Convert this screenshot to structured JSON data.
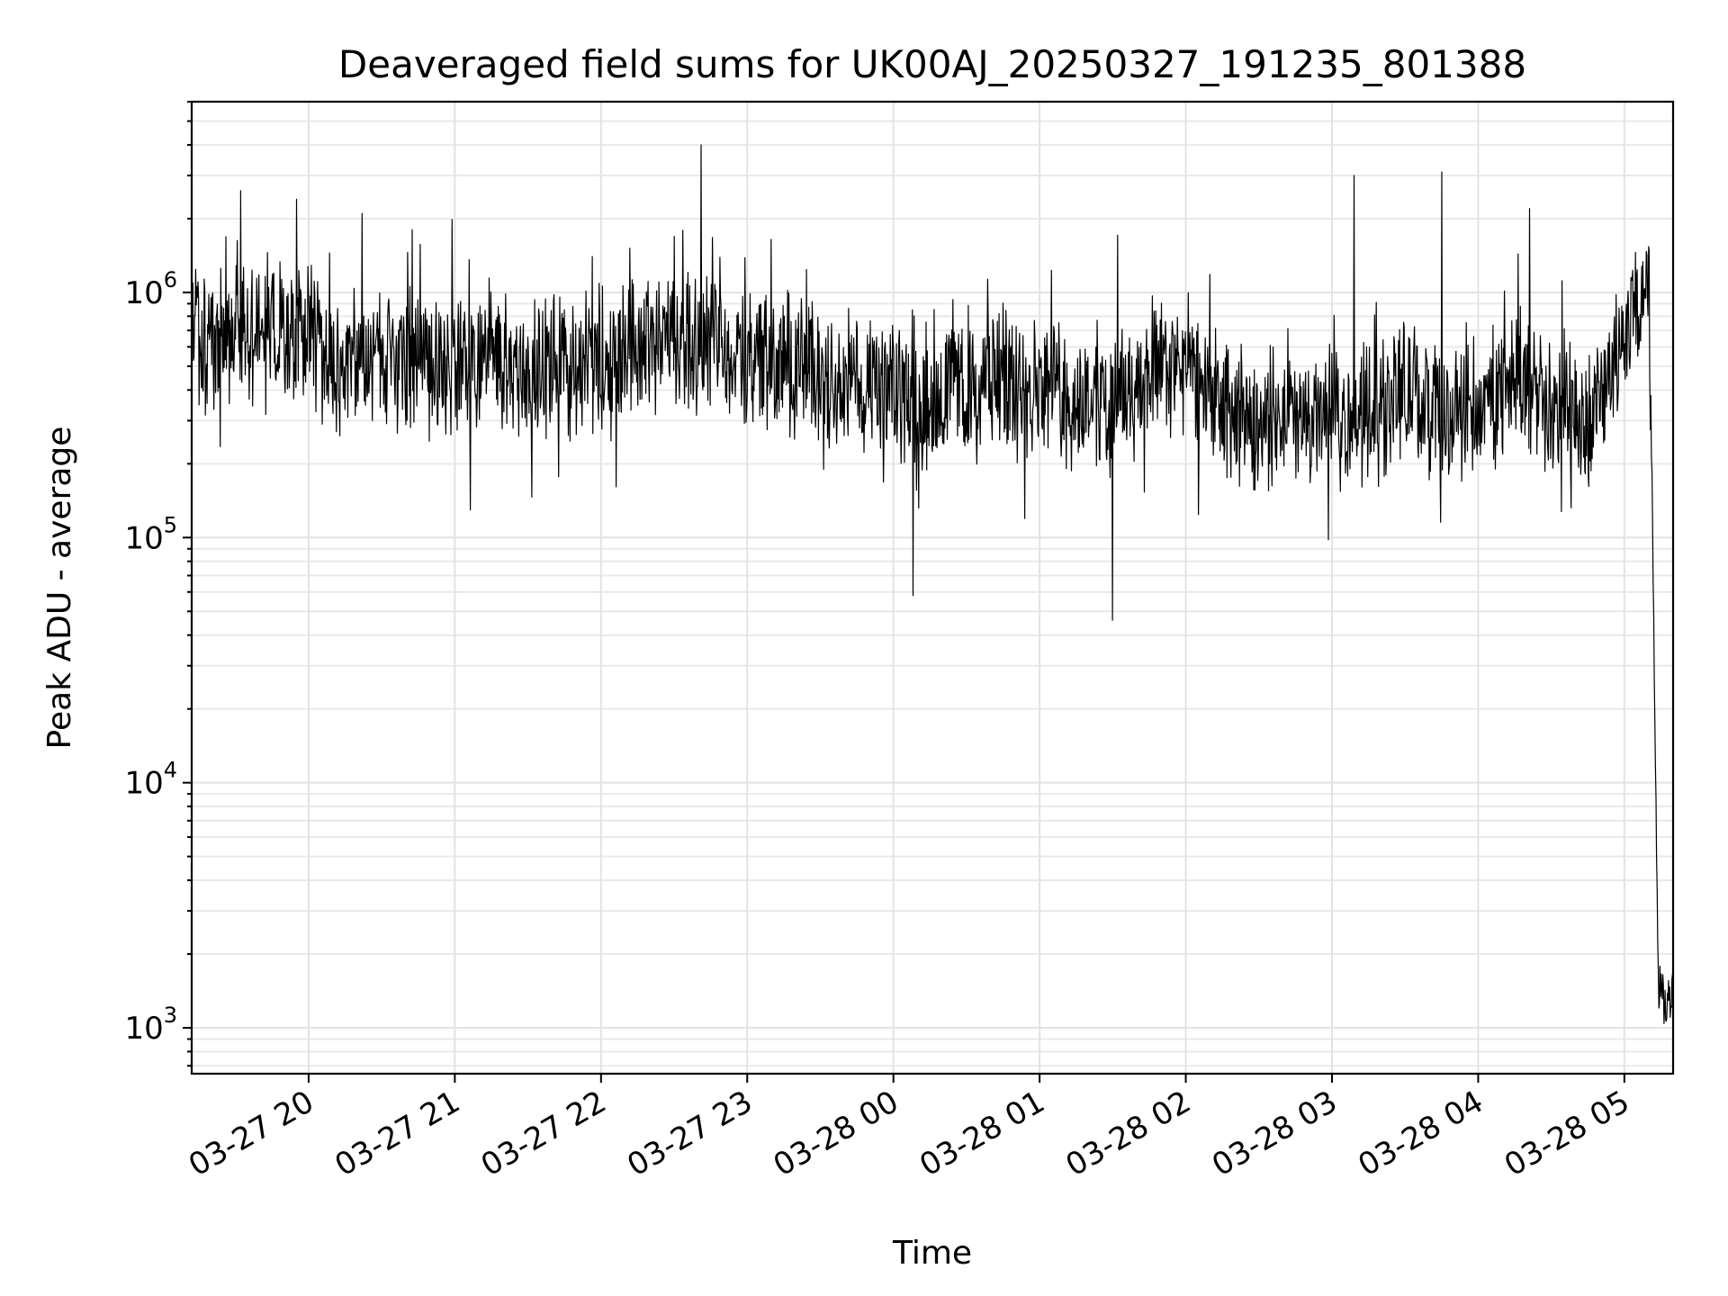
{
  "chart_data": {
    "type": "line",
    "title": "Deaveraged field sums for UK00AJ_20250327_191235_801388",
    "xlabel": "Time",
    "ylabel": "Peak ADU - average",
    "yscale": "log",
    "ylim": [
      650,
      6000000
    ],
    "xlim": [
      "2025-03-27 19:12",
      "2025-03-28 05:20"
    ],
    "grid": true,
    "line_color": "#000000",
    "x_ticks": [
      {
        "value": "2025-03-27 20:00",
        "label": "03-27 20"
      },
      {
        "value": "2025-03-27 21:00",
        "label": "03-27 21"
      },
      {
        "value": "2025-03-27 22:00",
        "label": "03-27 22"
      },
      {
        "value": "2025-03-27 23:00",
        "label": "03-27 23"
      },
      {
        "value": "2025-03-28 00:00",
        "label": "03-28 00"
      },
      {
        "value": "2025-03-28 01:00",
        "label": "03-28 01"
      },
      {
        "value": "2025-03-28 02:00",
        "label": "03-28 02"
      },
      {
        "value": "2025-03-28 03:00",
        "label": "03-28 03"
      },
      {
        "value": "2025-03-28 04:00",
        "label": "03-28 04"
      },
      {
        "value": "2025-03-28 05:00",
        "label": "03-28 05"
      }
    ],
    "y_ticks": [
      {
        "value": 1000,
        "base": "10",
        "exp": "3"
      },
      {
        "value": 10000,
        "base": "10",
        "exp": "4"
      },
      {
        "value": 100000,
        "base": "10",
        "exp": "5"
      },
      {
        "value": 1000000,
        "base": "10",
        "exp": "6"
      }
    ],
    "series": [
      {
        "x": [
          "2025-03-27 19:12",
          "2025-03-27 19:20",
          "2025-03-27 19:28",
          "2025-03-27 19:36",
          "2025-03-27 19:44",
          "2025-03-27 19:52",
          "2025-03-27 20:00",
          "2025-03-27 20:15",
          "2025-03-27 20:30",
          "2025-03-27 20:45",
          "2025-03-27 21:00",
          "2025-03-27 21:15",
          "2025-03-27 21:30",
          "2025-03-27 21:45",
          "2025-03-27 22:00",
          "2025-03-27 22:15",
          "2025-03-27 22:30",
          "2025-03-27 22:45",
          "2025-03-27 23:00",
          "2025-03-27 23:15",
          "2025-03-27 23:30",
          "2025-03-27 23:45",
          "2025-03-28 00:00",
          "2025-03-28 00:15",
          "2025-03-28 00:30",
          "2025-03-28 00:45",
          "2025-03-28 01:00",
          "2025-03-28 01:15",
          "2025-03-28 01:30",
          "2025-03-28 01:45",
          "2025-03-28 02:00",
          "2025-03-28 02:15",
          "2025-03-28 02:30",
          "2025-03-28 02:45",
          "2025-03-28 03:00",
          "2025-03-28 03:15",
          "2025-03-28 03:30",
          "2025-03-28 03:45",
          "2025-03-28 04:00",
          "2025-03-28 04:15",
          "2025-03-28 04:30",
          "2025-03-28 04:45",
          "2025-03-28 05:00",
          "2025-03-28 05:05",
          "2025-03-28 05:10",
          "2025-03-28 05:12",
          "2025-03-28 05:14",
          "2025-03-28 05:17",
          "2025-03-28 05:20"
        ],
        "y": [
          800000,
          550000,
          650000,
          700000,
          720000,
          700000,
          650000,
          500000,
          550000,
          480000,
          500000,
          520000,
          480000,
          500000,
          520000,
          650000,
          700000,
          620000,
          520000,
          520000,
          480000,
          420000,
          380000,
          380000,
          420000,
          450000,
          430000,
          370000,
          360000,
          450000,
          500000,
          330000,
          300000,
          300000,
          300000,
          320000,
          400000,
          300000,
          330000,
          450000,
          320000,
          300000,
          600000,
          900000,
          1300000,
          50000,
          1500,
          1200,
          1500
        ]
      }
    ],
    "spikes": [
      {
        "x": "2025-03-27 19:32",
        "y": 2600000
      },
      {
        "x": "2025-03-27 19:55",
        "y": 2400000
      },
      {
        "x": "2025-03-27 20:22",
        "y": 2100000
      },
      {
        "x": "2025-03-27 22:41",
        "y": 4000000
      },
      {
        "x": "2025-03-28 03:09",
        "y": 3000000
      },
      {
        "x": "2025-03-28 03:45",
        "y": 3100000
      },
      {
        "x": "2025-03-28 04:21",
        "y": 2200000
      },
      {
        "x": "2025-03-28 01:30",
        "y": 46000
      },
      {
        "x": "2025-03-28 00:08",
        "y": 58000
      }
    ]
  }
}
